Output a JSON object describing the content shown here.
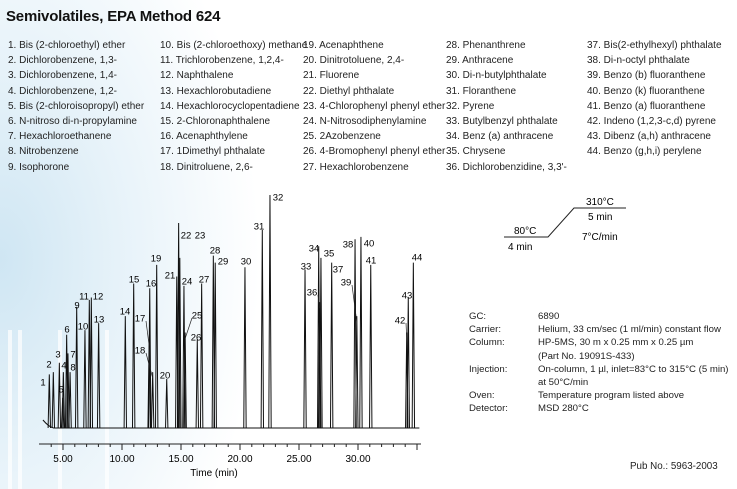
{
  "title": "Semivolatiles, EPA Method 624",
  "compounds": [
    "1. Bis (2-chloroethyl) ether",
    "2. Dichlorobenzene, 1,3-",
    "3. Dichlorobenzene, 1,4-",
    "4. Dichlorobenzene, 1,2-",
    "5. Bis (2-chloroisopropyl) ether",
    "6. N-nitroso di-n-propylamine",
    "7. Hexachloroethanene",
    "8. Nitrobenzene",
    "9. Isophorone",
    "10. Bis (2-chloroethoxy) methane",
    "11. Trichlorobenzene, 1,2,4-",
    "12. Naphthalene",
    "13. Hexachlorobutadiene",
    "14. Hexachlorocyclopentadiene",
    "15. 2-Chloronaphthalene",
    "16. Acenaphthylene",
    "17. 1Dimethyl phthalate",
    "18. Dinitroluene, 2,6-",
    "19. Acenaphthene",
    "20. Dinitrotoluene, 2,4-",
    "21. Fluorene",
    "22. Diethyl phthalate",
    "23. 4-Chlorophenyl phenyl ether",
    "24. N-Nitrosodiphenylamine",
    "25. 2Azobenzene",
    "26. 4-Bromophenyl phenyl ether",
    "27. Hexachlorobenzene",
    "28. Phenanthrene",
    "29. Anthracene",
    "30. Di-n-butylphthalate",
    "31. Floranthene",
    "32. Pyrene",
    "33. Butylbenzyl phthalate",
    "34. Benz (a) anthracene",
    "35. Chrysene",
    "36. Dichlorobenzidine, 3,3'-",
    "37. Bis(2-ethylhexyl) phthalate",
    "38. Di-n-octyl phthalate",
    "39. Benzo (b) fluoranthene",
    "40. Benzo (k) fluoranthene",
    "41. Benzo (a) fluoranthene",
    "42. Indeno (1,2,3-c,d) pyrene",
    "43. Dibenz (a,h) anthracene",
    "44. Benzo (g,h,i) perylene"
  ],
  "temperature_program": {
    "initial_temp": "80°C",
    "initial_hold": "4 min",
    "ramp": "7°C/min",
    "final_temp": "310°C",
    "final_hold": "5 min"
  },
  "parameters": [
    {
      "label": "GC:",
      "value": "6890"
    },
    {
      "label": "Carrier:",
      "value": "Helium, 33 cm/sec (1 ml/min) constant flow"
    },
    {
      "label": "Column:",
      "value": "HP-5MS, 30 m x 0.25 mm x 0.25 µm"
    },
    {
      "label": "",
      "value": "(Part No. 19091S-433)"
    },
    {
      "label": "Injection:",
      "value": "On-column, 1 µl, inlet=83°C to 315°C (5 min)"
    },
    {
      "label": "",
      "value": "at 50°C/min"
    },
    {
      "label": "Oven:",
      "value": "Temperature program listed above"
    },
    {
      "label": "Detector:",
      "value": "MSD 280°C"
    }
  ],
  "pub_no": "Pub No.: 5963-2003",
  "chart_data": {
    "type": "line",
    "subtype": "chromatogram",
    "xlabel": "Time (min)",
    "ylabel": "",
    "xlim": [
      3.0,
      35.3
    ],
    "xticks": [
      "5.00",
      "10.00",
      "15.00",
      "20.00",
      "25.00",
      "30.00"
    ],
    "xtick_values": [
      5,
      10,
      15,
      20,
      25,
      30
    ],
    "grid": false,
    "line_color": "#111111",
    "peaks": [
      {
        "label": "1",
        "t": 3.84,
        "h": 23
      },
      {
        "label": "2",
        "t": 4.18,
        "h": 24
      },
      {
        "label": "3",
        "t": 4.69,
        "h": 28
      },
      {
        "label": "4",
        "t": 5.03,
        "h": 24
      },
      {
        "label": "5",
        "t": 4.97,
        "h": 13
      },
      {
        "label": "6",
        "t": 5.31,
        "h": 40
      },
      {
        "label": "7",
        "t": 5.42,
        "h": 32
      },
      {
        "label": "8",
        "t": 5.6,
        "h": 24
      },
      {
        "label": "9",
        "t": 6.16,
        "h": 52
      },
      {
        "label": "10",
        "t": 6.86,
        "h": 42
      },
      {
        "label": "11",
        "t": 7.23,
        "h": 55
      },
      {
        "label": "12",
        "t": 7.4,
        "h": 56
      },
      {
        "label": "13",
        "t": 8.02,
        "h": 45
      },
      {
        "label": "14",
        "t": 10.28,
        "h": 48
      },
      {
        "label": "15",
        "t": 10.99,
        "h": 62
      },
      {
        "label": "16",
        "t": 12.35,
        "h": 60
      },
      {
        "label": "17",
        "t": 12.3,
        "h": 38
      },
      {
        "label": "18",
        "t": 12.6,
        "h": 24
      },
      {
        "label": "19",
        "t": 12.94,
        "h": 70
      },
      {
        "label": "20",
        "t": 13.79,
        "h": 21
      },
      {
        "label": "21",
        "t": 14.64,
        "h": 65
      },
      {
        "label": "22",
        "t": 14.8,
        "h": 88
      },
      {
        "label": "23",
        "t": 14.9,
        "h": 73
      },
      {
        "label": "24",
        "t": 15.25,
        "h": 61
      },
      {
        "label": "25",
        "t": 15.35,
        "h": 41
      },
      {
        "label": "26",
        "t": 16.38,
        "h": 38
      },
      {
        "label": "27",
        "t": 16.75,
        "h": 62
      },
      {
        "label": "28",
        "t": 17.74,
        "h": 74
      },
      {
        "label": "29",
        "t": 17.9,
        "h": 71
      },
      {
        "label": "30",
        "t": 20.42,
        "h": 69
      },
      {
        "label": "31",
        "t": 21.89,
        "h": 85
      },
      {
        "label": "32",
        "t": 22.54,
        "h": 100
      },
      {
        "label": "33",
        "t": 25.51,
        "h": 68
      },
      {
        "label": "34",
        "t": 26.67,
        "h": 78
      },
      {
        "label": "35",
        "t": 26.86,
        "h": 73
      },
      {
        "label": "36",
        "t": 26.75,
        "h": 54
      },
      {
        "label": "37",
        "t": 27.77,
        "h": 71
      },
      {
        "label": "38",
        "t": 29.75,
        "h": 81
      },
      {
        "label": "39",
        "t": 29.9,
        "h": 48
      },
      {
        "label": "40",
        "t": 30.25,
        "h": 82
      },
      {
        "label": "41",
        "t": 31.08,
        "h": 70
      },
      {
        "label": "42",
        "t": 34.13,
        "h": 41
      },
      {
        "label": "43",
        "t": 34.26,
        "h": 56
      },
      {
        "label": "44",
        "t": 34.69,
        "h": 71
      }
    ]
  }
}
